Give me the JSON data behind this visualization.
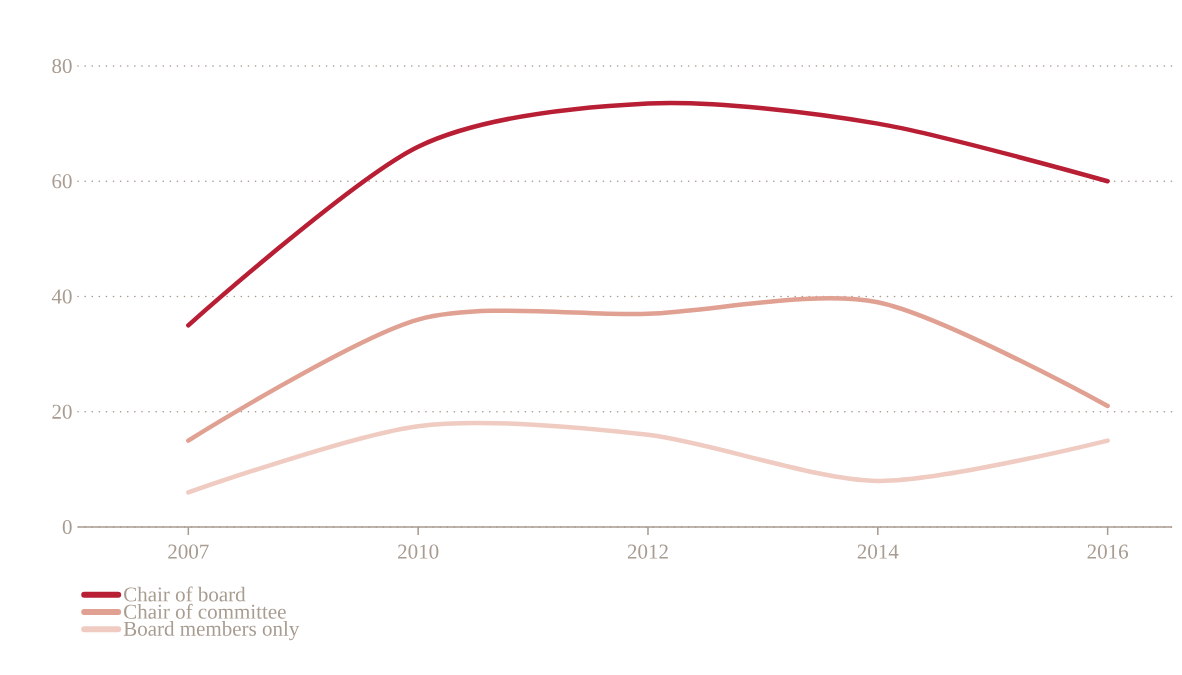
{
  "chart_data": {
    "type": "line",
    "categories": [
      "2007",
      "2010",
      "2012",
      "2014",
      "2016"
    ],
    "series": [
      {
        "name": "Chair of board",
        "color": "#b81f35",
        "values": [
          35,
          66,
          73.5,
          70,
          60
        ]
      },
      {
        "name": "Chair of committee",
        "color": "#e0a092",
        "values": [
          15,
          36,
          37,
          39,
          21
        ]
      },
      {
        "name": "Board members only",
        "color": "#f0cbc1",
        "values": [
          6,
          17.5,
          16,
          8,
          15
        ]
      }
    ],
    "ylim": [
      0,
      80
    ],
    "yticks": [
      0,
      20,
      40,
      60,
      80
    ],
    "grid": "y",
    "legend": "bottom left",
    "marker": "none",
    "line_style": "solid"
  }
}
